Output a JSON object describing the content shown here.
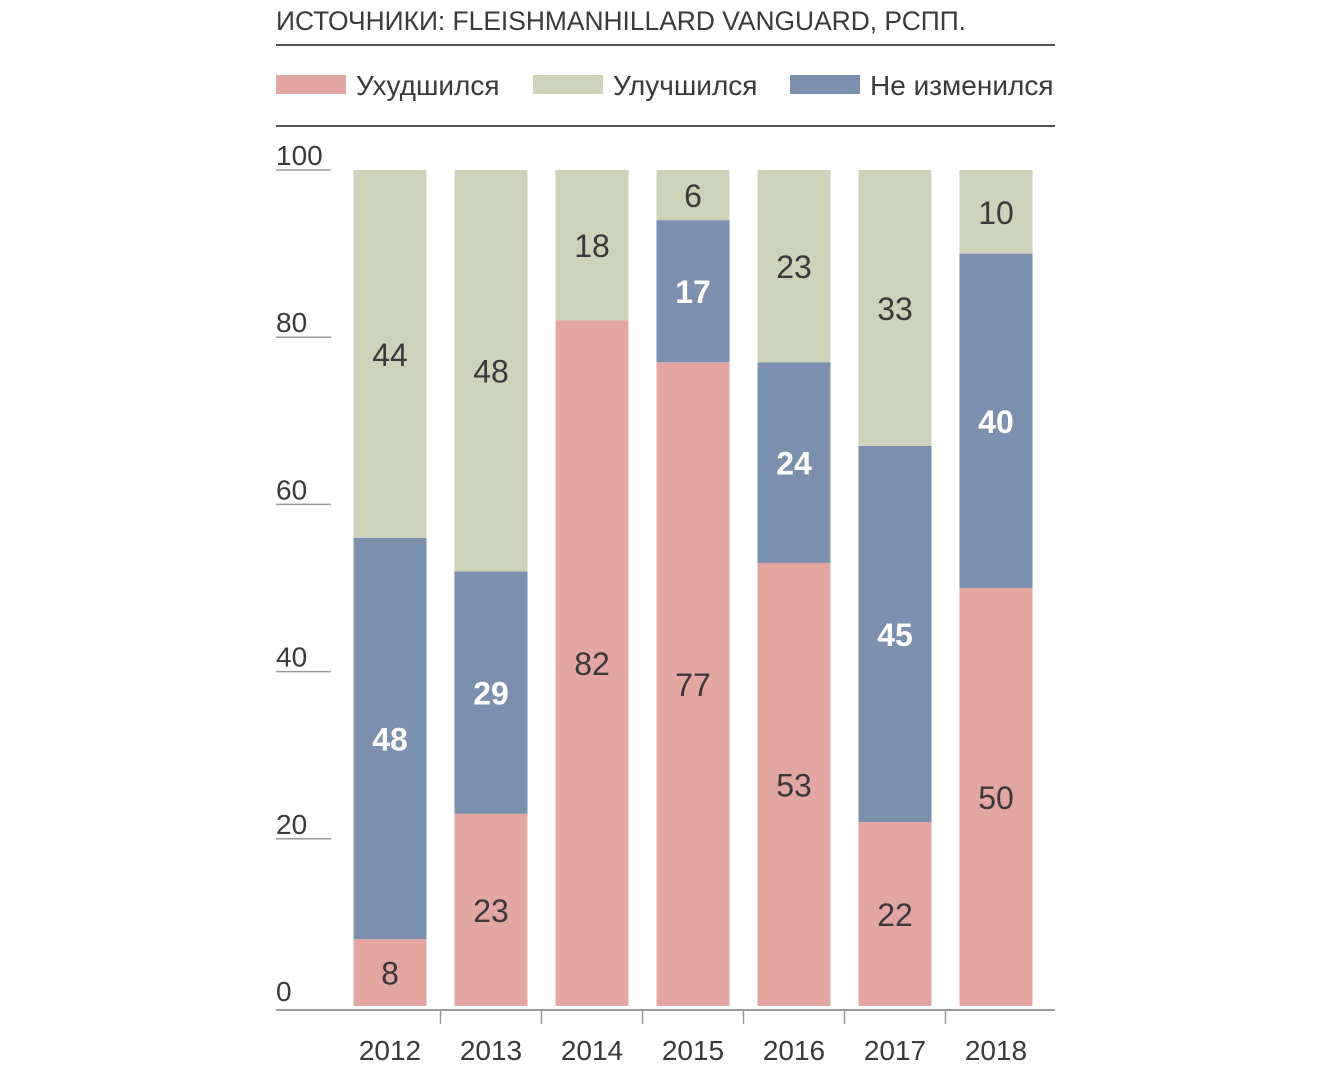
{
  "source": "ИСТОЧНИКИ: FLEISHMANHILLARD VANGUARD, РСПП.",
  "chart_data": {
    "type": "bar",
    "stacked": true,
    "categories": [
      "2012",
      "2013",
      "2014",
      "2015",
      "2016",
      "2017",
      "2018"
    ],
    "series": [
      {
        "name": "Ухудшился",
        "color": "#e3a6a0",
        "label_color": "#3a3a3a",
        "values": [
          8,
          23,
          82,
          77,
          53,
          22,
          50
        ]
      },
      {
        "name": "Не изменился",
        "color": "#7a90ae",
        "label_color": "#ffffff",
        "values": [
          48,
          29,
          0,
          17,
          24,
          45,
          40
        ]
      },
      {
        "name": "Улучшился",
        "color": "#cdd3b8",
        "label_color": "#3a3a3a",
        "values": [
          44,
          48,
          18,
          6,
          23,
          33,
          10
        ]
      }
    ],
    "legend": {
      "position": "top",
      "order": [
        "Ухудшился",
        "Улучшился",
        "Не изменился"
      ]
    },
    "yticks": [
      0,
      20,
      40,
      60,
      80,
      100
    ],
    "ylim": [
      0,
      100
    ],
    "grid": false,
    "axis_color": "#999999"
  }
}
